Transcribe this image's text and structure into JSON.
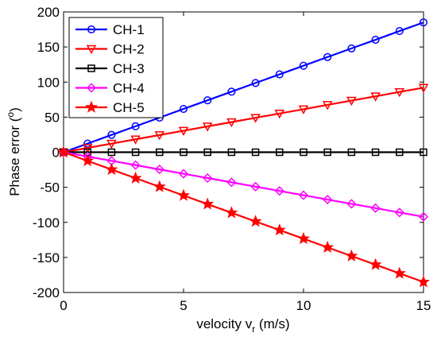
{
  "chart_data": {
    "type": "line",
    "xlabel_main": "velocity v",
    "xlabel_sub": "r",
    "xlabel_tail": " (m/s)",
    "ylabel_main": "Phase error (",
    "ylabel_sup": "o",
    "ylabel_tail": ")",
    "xlim": [
      0,
      15
    ],
    "ylim": [
      -200,
      200
    ],
    "xticks": [
      0,
      5,
      10,
      15
    ],
    "yticks": [
      200,
      150,
      100,
      50,
      0,
      -50,
      -100,
      -150,
      -200
    ],
    "x": [
      0,
      1,
      2,
      3,
      4,
      5,
      6,
      7,
      8,
      9,
      10,
      11,
      12,
      13,
      14,
      15
    ],
    "grid": false,
    "legend_position": "top-left",
    "series": [
      {
        "name": "CH-1",
        "color": "#0000ff",
        "marker": "circle",
        "values": [
          0,
          12.3,
          24.7,
          37,
          49.3,
          61.7,
          74,
          86.3,
          98.7,
          111,
          123.3,
          135.7,
          148,
          160.3,
          172.7,
          185
        ]
      },
      {
        "name": "CH-2",
        "color": "#ff0000",
        "marker": "triangle-down",
        "values": [
          0,
          6.1,
          12.3,
          18.4,
          24.5,
          30.7,
          36.8,
          42.9,
          49.1,
          55.2,
          61.3,
          67.5,
          73.6,
          79.7,
          85.9,
          92
        ]
      },
      {
        "name": "CH-3",
        "color": "#000000",
        "marker": "square",
        "values": [
          0,
          0,
          0,
          0,
          0,
          0,
          0,
          0,
          0,
          0,
          0,
          0,
          0,
          0,
          0,
          0
        ]
      },
      {
        "name": "CH-4",
        "color": "#ff00ff",
        "marker": "diamond",
        "values": [
          0,
          -6.1,
          -12.3,
          -18.4,
          -24.5,
          -30.7,
          -36.8,
          -42.9,
          -49.1,
          -55.2,
          -61.3,
          -67.5,
          -73.6,
          -79.7,
          -85.9,
          -92
        ]
      },
      {
        "name": "CH-5",
        "color": "#ff0000",
        "marker": "star",
        "values": [
          0,
          -12.3,
          -24.7,
          -37,
          -49.3,
          -61.7,
          -74,
          -86.3,
          -98.7,
          -111,
          -123.3,
          -135.7,
          -148,
          -160.3,
          -172.7,
          -185
        ]
      }
    ]
  }
}
